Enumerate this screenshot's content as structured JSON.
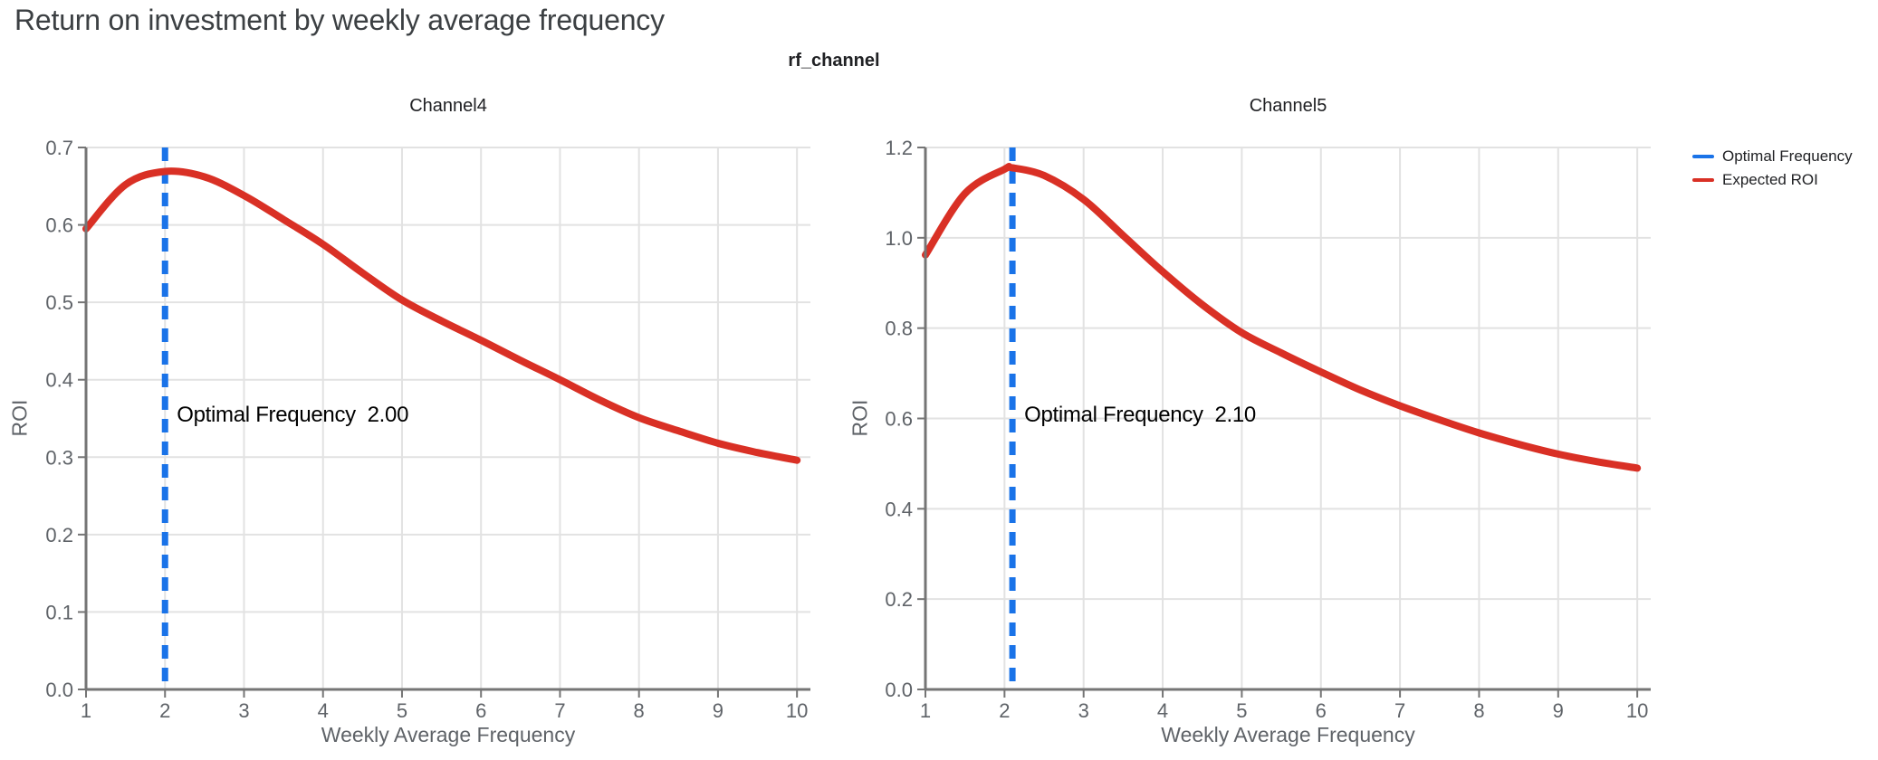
{
  "page": {
    "title": "Return on investment by weekly average frequency",
    "figure_title": "rf_channel"
  },
  "legend": {
    "items": [
      {
        "label": "Optimal Frequency",
        "color": "#1a73e8"
      },
      {
        "label": "Expected ROI",
        "color": "#d93025"
      }
    ]
  },
  "colors": {
    "axis": "#757575",
    "grid": "#e2e2e2",
    "tick_text": "#5f6368",
    "optimal_line": "#1a73e8",
    "roi_curve": "#d93025"
  },
  "chart_data": [
    {
      "type": "line",
      "title": "Channel4",
      "xlabel": "Weekly Average Frequency",
      "ylabel": "ROI",
      "xlim": [
        1,
        10.17
      ],
      "ylim": [
        0,
        0.7
      ],
      "x_ticks": [
        1,
        2,
        3,
        4,
        5,
        6,
        7,
        8,
        9,
        10
      ],
      "y_ticks": [
        "0.0",
        "0.1",
        "0.2",
        "0.3",
        "0.4",
        "0.5",
        "0.6",
        "0.7"
      ],
      "grid": true,
      "legend_position": "top-right-outside",
      "optimal_frequency": "2.00",
      "annotation": "Optimal Frequency  2.00",
      "vline": {
        "name": "Optimal Frequency",
        "x": 2.0
      },
      "series": [
        {
          "name": "Expected ROI",
          "x": [
            1,
            1.5,
            2,
            2.5,
            3,
            3.5,
            4,
            4.5,
            5,
            5.5,
            6,
            6.5,
            7,
            7.5,
            8,
            8.5,
            9,
            9.5,
            10
          ],
          "y": [
            0.595,
            0.652,
            0.669,
            0.662,
            0.638,
            0.607,
            0.575,
            0.538,
            0.503,
            0.476,
            0.451,
            0.425,
            0.4,
            0.374,
            0.351,
            0.334,
            0.318,
            0.306,
            0.296
          ]
        }
      ]
    },
    {
      "type": "line",
      "title": "Channel5",
      "xlabel": "Weekly Average Frequency",
      "ylabel": "ROI",
      "xlim": [
        1,
        10.17
      ],
      "ylim": [
        0,
        1.2
      ],
      "x_ticks": [
        1,
        2,
        3,
        4,
        5,
        6,
        7,
        8,
        9,
        10
      ],
      "y_ticks": [
        "0.0",
        "0.2",
        "0.4",
        "0.6",
        "0.8",
        "1.0",
        "1.2"
      ],
      "grid": true,
      "legend_position": "top-right-outside",
      "optimal_frequency": "2.10",
      "annotation": "Optimal Frequency  2.10",
      "vline": {
        "name": "Optimal Frequency",
        "x": 2.1
      },
      "series": [
        {
          "name": "Expected ROI",
          "x": [
            1,
            1.5,
            2,
            2.1,
            2.5,
            3,
            3.5,
            4,
            4.5,
            5,
            5.5,
            6,
            6.5,
            7,
            7.5,
            8,
            8.5,
            9,
            9.5,
            10
          ],
          "y": [
            0.962,
            1.098,
            1.152,
            1.155,
            1.138,
            1.085,
            1.005,
            0.925,
            0.852,
            0.79,
            0.745,
            0.703,
            0.663,
            0.628,
            0.597,
            0.568,
            0.543,
            0.521,
            0.504,
            0.49
          ]
        }
      ]
    }
  ]
}
